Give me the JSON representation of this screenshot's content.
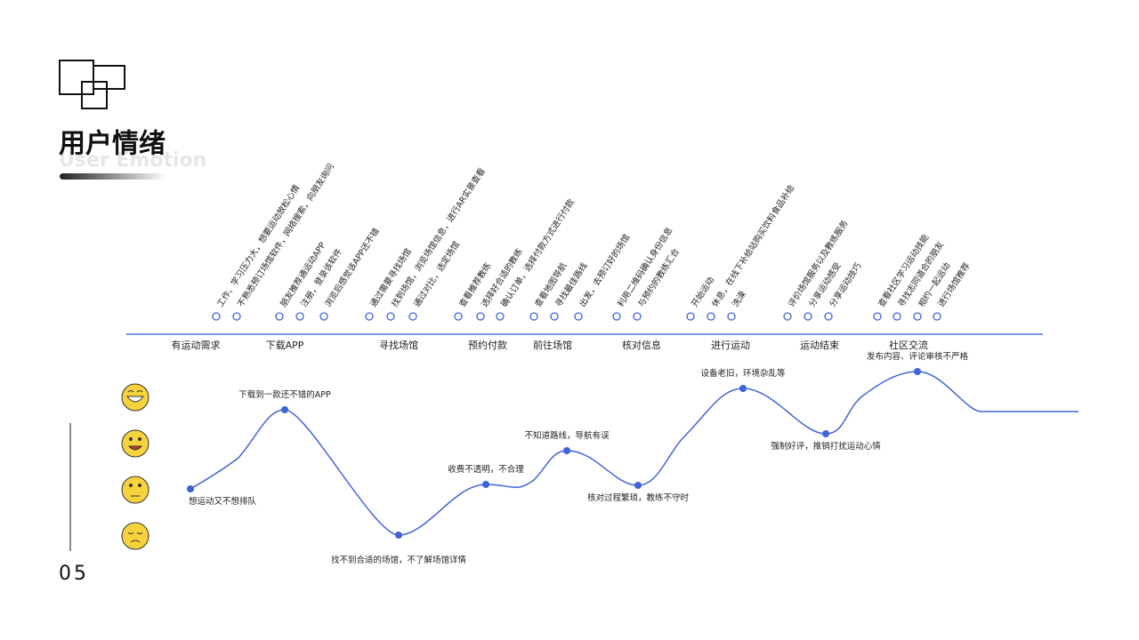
{
  "header": {
    "title": "用户情绪",
    "subtitle": "User Emotion",
    "page_number": "05"
  },
  "stages": [
    {
      "label": "有运动需求",
      "touchpoints": [
        "工作、学习压力大，想要运动放松心情",
        "不熟悉预订场馆软件，网络搜索，向朋友询问"
      ]
    },
    {
      "label": "下载APP",
      "touchpoints": [
        "朋友推荐通运动APP",
        "注册，登录该软件",
        "浏览后感觉该APP还不错"
      ]
    },
    {
      "label": "寻找场馆",
      "touchpoints": [
        "通过需要寻找场馆",
        "找到场馆，浏览场馆信息，进行AR实景查看",
        "通过对比，选定场馆"
      ]
    },
    {
      "label": "预约付款",
      "touchpoints": [
        "查看推荐教练",
        "选择好合适的教练",
        "确认订单，选择付款方式进行付款"
      ]
    },
    {
      "label": "前往场馆",
      "touchpoints": [
        "查看地图导航",
        "寻找最佳路线",
        "出发，去预订好的场馆"
      ]
    },
    {
      "label": "核对信息",
      "touchpoints": [
        "利用二维码确认身份信息",
        "与预约的教练汇合"
      ]
    },
    {
      "label": "进行运动",
      "touchpoints": [
        "开始运动",
        "休息，在线下补给站购买饮料食品补给",
        "洗澡"
      ]
    },
    {
      "label": "运动结束",
      "touchpoints": [
        "评价场馆服务以及教练服务",
        "分享运动感受",
        "分享运动技巧"
      ]
    },
    {
      "label": "社区交流",
      "touchpoints": [
        "查看社区学习运动技能",
        "寻找志同道合的朋友",
        "相约一起运动",
        "进行场馆推荐"
      ]
    }
  ],
  "emotion_points": [
    "想运动又不想排队",
    "下载到一款还不错的APP",
    "找不到合适的场馆，不了解场馆详情",
    "收费不透明，不合理",
    "不知道路线，导航有误",
    "核对过程繁琐，教练不守时",
    "设备老旧，环境杂乱等",
    "强制好评，推销打扰运动心情",
    "发布内容、评论审核不严格"
  ]
}
